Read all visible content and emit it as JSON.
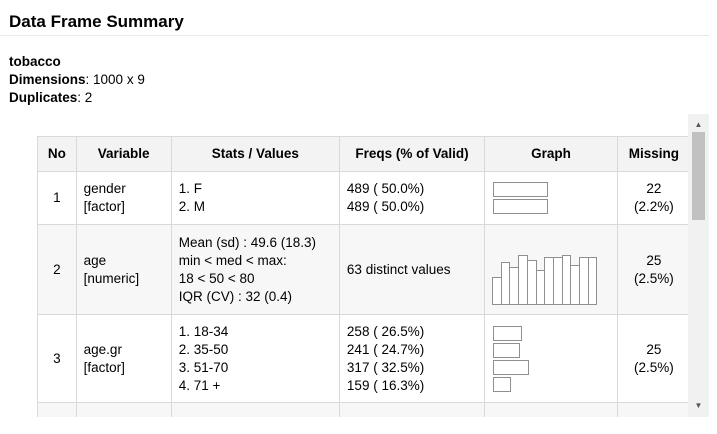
{
  "header": {
    "title": "Data Frame Summary"
  },
  "meta": {
    "dataset": "tobacco",
    "dimensions_label": "Dimensions",
    "dimensions_value": ": 1000 x 9",
    "duplicates_label": "Duplicates",
    "duplicates_value": ": 2"
  },
  "table": {
    "headers": [
      "No",
      "Variable",
      "Stats / Values",
      "Freqs (% of Valid)",
      "Graph",
      "Missing"
    ],
    "rows": [
      {
        "no": "1",
        "variable": [
          "gender",
          "[factor]"
        ],
        "stats": [
          "1. F",
          "2. M"
        ],
        "freqs": [
          "489 ( 50.0%)",
          "489 ( 50.0%)"
        ],
        "bars": [
          0.5,
          0.5
        ],
        "missing": [
          "22",
          "(2.2%)"
        ]
      },
      {
        "no": "2",
        "variable": [
          "age",
          "[numeric]"
        ],
        "stats": [
          "Mean (sd) : 49.6 (18.3)",
          "min < med < max:",
          "18 < 50 < 80",
          "IQR (CV) : 32 (0.4)"
        ],
        "freqs": [
          "63 distinct values"
        ],
        "histogram": [
          0.55,
          0.85,
          0.75,
          1.0,
          0.9,
          0.7,
          0.95,
          0.95,
          1.0,
          0.8,
          0.95,
          0.95
        ],
        "missing": [
          "25",
          "(2.5%)"
        ]
      },
      {
        "no": "3",
        "variable": [
          "age.gr",
          "[factor]"
        ],
        "stats": [
          "1. 18-34",
          "2. 35-50",
          "3. 51-70",
          "4. 71 +"
        ],
        "freqs": [
          "258 ( 26.5%)",
          "241 ( 24.7%)",
          "317 ( 32.5%)",
          "159 ( 16.3%)"
        ],
        "bars": [
          0.265,
          0.247,
          0.325,
          0.163
        ],
        "missing": [
          "25",
          "(2.5%)"
        ]
      }
    ]
  },
  "icons": {
    "scroll_up": "arrow-up-icon",
    "scroll_down": "arrow-down-icon"
  }
}
